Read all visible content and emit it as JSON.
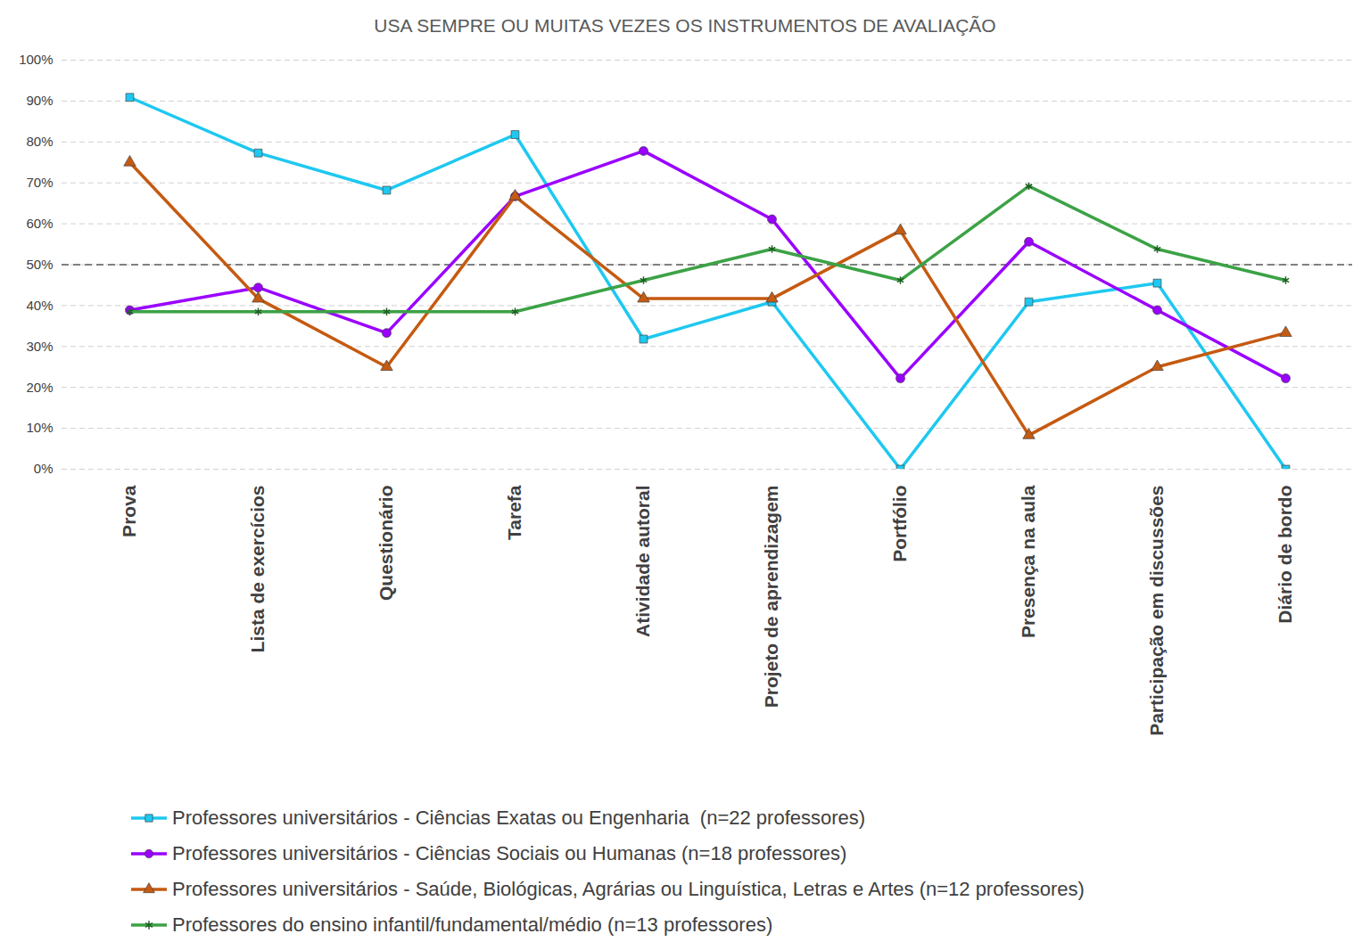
{
  "chart_data": {
    "type": "line",
    "title": "USA SEMPRE OU MUITAS VEZES OS INSTRUMENTOS DE AVALIAÇÃO",
    "categories": [
      "Prova",
      "Lista de exercícios",
      "Questionário",
      "Tarefa",
      "Atividade autoral",
      "Projeto de aprendizagem",
      "Portfólio",
      "Presença na aula",
      "Participação em discussões",
      "Diário de bordo"
    ],
    "series": [
      {
        "name": "Professores universitários - Ciências Exatas ou Engenharia  (n=22 professores)",
        "color": "#1ec8f0",
        "marker": "square",
        "values": [
          90.9,
          77.3,
          68.2,
          81.8,
          31.8,
          40.9,
          0,
          40.9,
          45.5,
          0
        ]
      },
      {
        "name": "Professores universitários - Ciências Sociais ou Humanas (n=18 professores)",
        "color": "#9a00ff",
        "marker": "circle",
        "values": [
          38.9,
          44.4,
          33.3,
          66.7,
          77.8,
          61.1,
          22.2,
          55.6,
          38.9,
          22.2
        ]
      },
      {
        "name": "Professores universitários - Saúde, Biológicas, Agrárias ou Linguística, Letras e Artes (n=12 professores)",
        "color": "#c55a11",
        "marker": "triangle",
        "values": [
          75,
          41.7,
          25,
          66.7,
          41.7,
          41.7,
          58.3,
          8.3,
          25,
          33.3
        ]
      },
      {
        "name": "Professores do ensino infantil/fundamental/médio (n=13 professores)",
        "color": "#3ca246",
        "marker": "asterisk",
        "values": [
          38.5,
          38.5,
          38.5,
          38.5,
          46.2,
          53.8,
          46.2,
          69.2,
          53.8,
          46.2
        ]
      }
    ],
    "reference_lines": [
      50
    ],
    "ylim": [
      0,
      100
    ],
    "yticks": [
      {
        "value": 0,
        "label": "0%"
      },
      {
        "value": 10,
        "label": "10%"
      },
      {
        "value": 20,
        "label": "20%"
      },
      {
        "value": 30,
        "label": "30%"
      },
      {
        "value": 40,
        "label": "40%"
      },
      {
        "value": 50,
        "label": "50%"
      },
      {
        "value": 60,
        "label": "60%"
      },
      {
        "value": 70,
        "label": "70%"
      },
      {
        "value": 80,
        "label": "80%"
      },
      {
        "value": 90,
        "label": "90%"
      },
      {
        "value": 100,
        "label": "100%"
      }
    ],
    "grid": true,
    "legend": "bottom"
  }
}
